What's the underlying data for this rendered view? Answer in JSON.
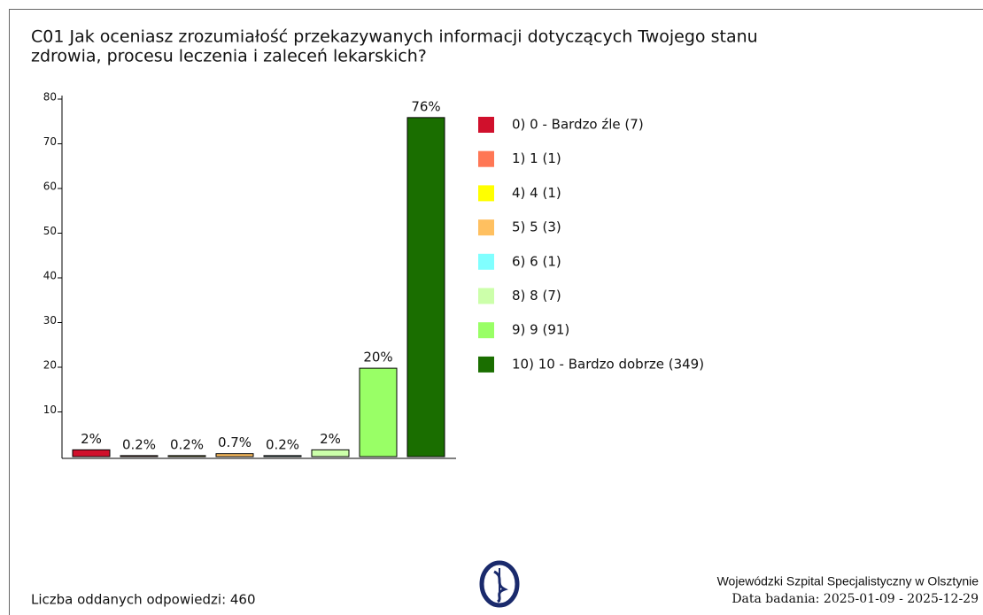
{
  "chart_data": {
    "type": "bar",
    "title": [
      "C01 Jak oceniasz zrozumiałość przekazywanych informacji dotyczących Twojego stanu",
      "zdrowia, procesu leczenia i zaleceń lekarskich?"
    ],
    "categories": [
      "0) 0 - Bardzo źle (7)",
      "1) 1 (1)",
      "4) 4 (1)",
      "5) 5 (3)",
      "6) 6 (1)",
      "8) 8 (7)",
      "9) 9 (91)",
      "10) 10 - Bardzo dobrze (349)"
    ],
    "values": [
      1.52,
      0.22,
      0.22,
      0.65,
      0.22,
      1.52,
      19.78,
      75.87
    ],
    "value_labels": [
      "2%",
      "0.2%",
      "0.2%",
      "0.7%",
      "0.2%",
      "2%",
      "20%",
      "76%"
    ],
    "colors": [
      "#d0102c",
      "#ff7755",
      "#ffff00",
      "#ffc060",
      "#80ffff",
      "#ccffaa",
      "#99ff66",
      "#1a6e00"
    ],
    "ylim": [
      0,
      80
    ],
    "yticks": [
      10,
      20,
      30,
      40,
      50,
      60,
      70,
      80
    ]
  },
  "footer": {
    "responses": "Liczba oddanych odpowiedzi: 460",
    "hospital": "Wojewódzki Szpital Specjalistyczny w Olsztynie",
    "date": "Data badania: 2025-01-09 - 2025-12-29"
  }
}
